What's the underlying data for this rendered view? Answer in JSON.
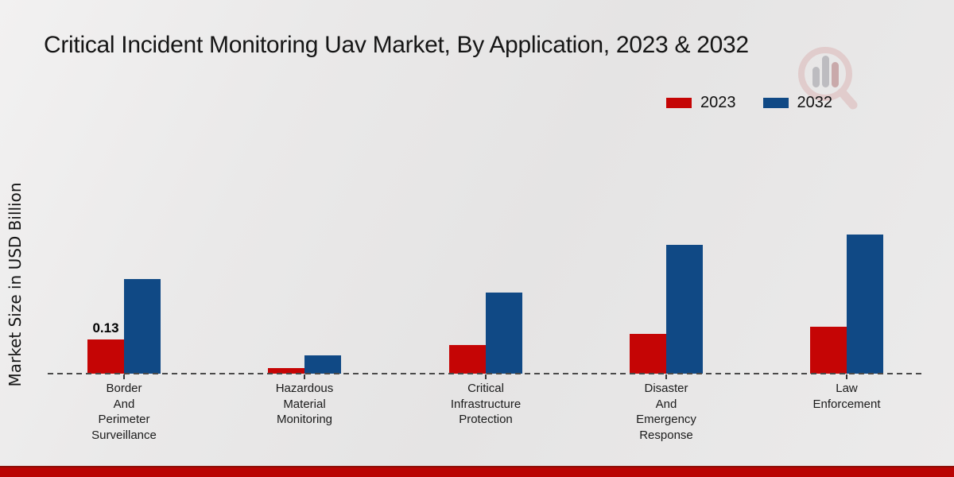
{
  "title": "Critical Incident Monitoring Uav Market, By Application, 2023 & 2032",
  "y_axis_title": "Market Size in USD Billion",
  "legend": {
    "items": [
      {
        "label": "2023",
        "color": "#c50505"
      },
      {
        "label": "2032",
        "color": "#104985"
      }
    ]
  },
  "colors": {
    "series_2023": "#c50505",
    "series_2032": "#104985",
    "baseline_dash": "#4a4a4a",
    "footer_strip_red": "#ba0403",
    "footer_strip_dark": "#8c0f08",
    "background": "#e9e8e8"
  },
  "watermark_icon": "magnifier-bar-chart-logo",
  "chart_data": {
    "type": "bar",
    "title": "Critical Incident Monitoring Uav Market, By Application, 2023 & 2032",
    "xlabel": "",
    "ylabel": "Market Size in USD Billion",
    "categories": [
      "Border And Perimeter Surveillance",
      "Hazardous Material Monitoring",
      "Critical Infrastructure Protection",
      "Disaster And Emergency Response",
      "Law Enforcement"
    ],
    "series": [
      {
        "name": "2023",
        "color": "#c50505",
        "values": [
          0.13,
          0.02,
          0.11,
          0.15,
          0.18
        ]
      },
      {
        "name": "2032",
        "color": "#104985",
        "values": [
          0.36,
          0.07,
          0.31,
          0.49,
          0.53
        ]
      }
    ],
    "data_labels": [
      {
        "series": "2023",
        "category": "Border And Perimeter Surveillance",
        "text": "0.13"
      }
    ],
    "ylim": [
      0,
      0.62
    ],
    "grid": false,
    "baseline_style": "dashed",
    "legend_position": "top-right"
  }
}
